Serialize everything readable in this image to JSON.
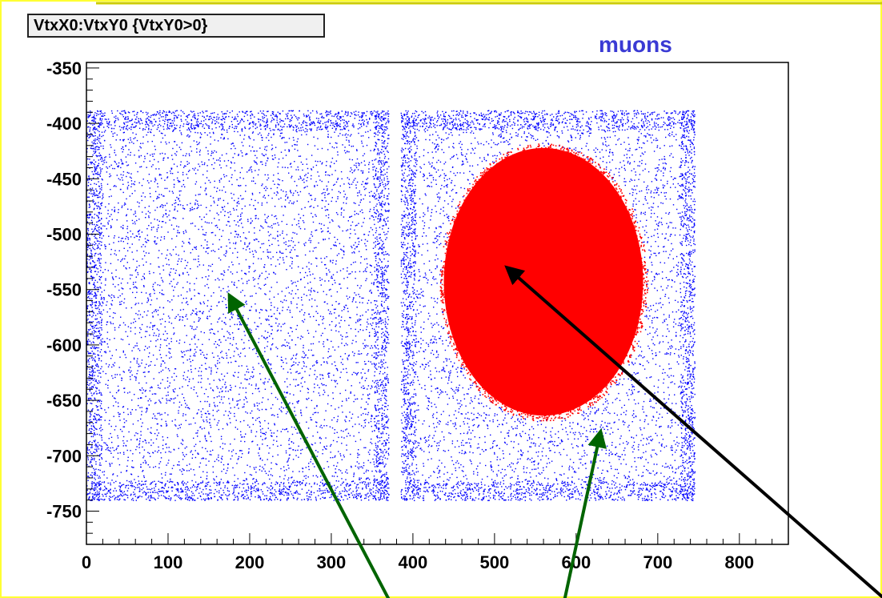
{
  "colors": {
    "frame": "#ffff33",
    "frame_top": "#cccc00",
    "background": "#ffffff",
    "blue_points": "#0000ff",
    "red_points": "#ff0000",
    "green_arrow": "#006400",
    "black_arrow": "#000000",
    "label_blue": "#3a3ad4"
  },
  "chart_data": {
    "type": "scatter",
    "title": "VtxX0:VtxY0 {VtxY0>0}",
    "annotation": "muons",
    "xlabel": "",
    "ylabel": "",
    "xlim": [
      0,
      860
    ],
    "ylim": [
      -780,
      -345
    ],
    "x_ticks": [
      "0",
      "100",
      "200",
      "300",
      "400",
      "500",
      "600",
      "700",
      "800"
    ],
    "x_tick_values": [
      0,
      100,
      200,
      300,
      400,
      500,
      600,
      700,
      800
    ],
    "y_ticks": [
      "-350",
      "-400",
      "-450",
      "-500",
      "-550",
      "-600",
      "-650",
      "-700",
      "-750"
    ],
    "y_tick_values": [
      -350,
      -400,
      -450,
      -500,
      -550,
      -600,
      -650,
      -700,
      -750
    ],
    "grid": false,
    "series": [
      {
        "color": "blue",
        "regions": [
          {
            "x": [
              0,
              370
            ],
            "y": [
              -740,
              -388
            ]
          },
          {
            "x": [
              385,
              745
            ],
            "y": [
              -740,
              -388
            ]
          }
        ]
      },
      {
        "color": "red",
        "ellipse": {
          "cx": 560,
          "cy": -543,
          "rx": 125,
          "ry": 123
        }
      }
    ],
    "arrows": [
      {
        "color": "green",
        "from": [
          385,
          -850
        ],
        "to": [
          175,
          -555
        ]
      },
      {
        "color": "green",
        "from": [
          580,
          -850
        ],
        "to": [
          630,
          -678
        ]
      },
      {
        "color": "black",
        "from": [
          1010,
          -850
        ],
        "to": [
          515,
          -530
        ]
      }
    ]
  }
}
